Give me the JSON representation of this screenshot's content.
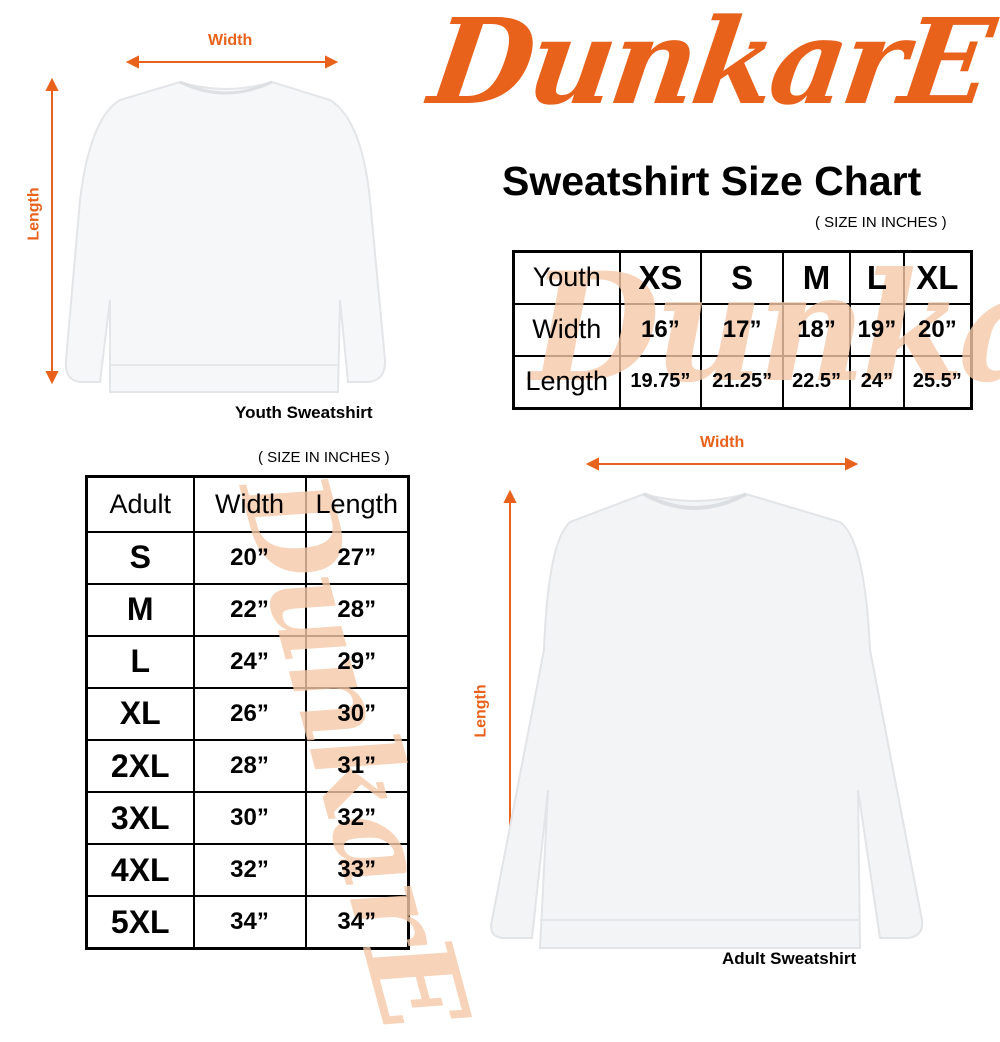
{
  "brand": {
    "logo_text": "DunkarE",
    "color": "#e8621c"
  },
  "title": "Sweatshirt Size Chart",
  "youth": {
    "note": "( SIZE IN INCHES )",
    "caption": "Youth Sweatshirt",
    "width_label": "Width",
    "length_label": "Length",
    "header": [
      "Youth",
      "XS",
      "S",
      "M",
      "L",
      "XL"
    ],
    "rows": [
      [
        "Width",
        "16”",
        "17”",
        "18”",
        "19”",
        "20”"
      ],
      [
        "Length",
        "19.75”",
        "21.25”",
        "22.5”",
        "24”",
        "25.5”"
      ]
    ]
  },
  "adult": {
    "note": "( SIZE IN INCHES )",
    "caption": "Adult Sweatshirt",
    "width_label": "Width",
    "length_label": "Length",
    "header": [
      "Adult",
      "Width",
      "Length"
    ],
    "rows": [
      [
        "S",
        "20”",
        "27”"
      ],
      [
        "M",
        "22”",
        "28”"
      ],
      [
        "L",
        "24”",
        "29”"
      ],
      [
        "XL",
        "26”",
        "30”"
      ],
      [
        "2XL",
        "28”",
        "31”"
      ],
      [
        "3XL",
        "30”",
        "32”"
      ],
      [
        "4XL",
        "32”",
        "33”"
      ],
      [
        "5XL",
        "34”",
        "34”"
      ]
    ]
  }
}
